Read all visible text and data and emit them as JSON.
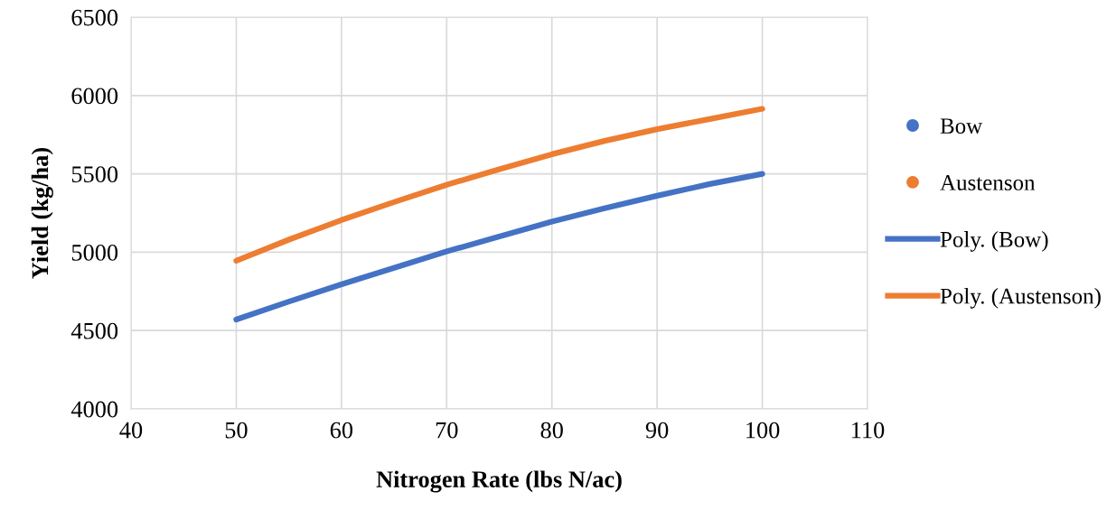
{
  "chart_data": {
    "type": "line",
    "xlabel": "Nitrogen Rate (lbs N/ac)",
    "ylabel": "Yield (kg/ha)",
    "xlim": [
      40,
      110
    ],
    "xticks": [
      40,
      50,
      60,
      70,
      80,
      90,
      100,
      110
    ],
    "ylim": [
      4000,
      6500
    ],
    "yticks": [
      4000,
      4500,
      5000,
      5500,
      6000,
      6500
    ],
    "grid": true,
    "legend": "right",
    "series": [
      {
        "name": "Bow",
        "type": "scatter",
        "marker": "circle",
        "color": "#4472c4"
      },
      {
        "name": "Austenson",
        "type": "scatter",
        "marker": "circle",
        "color": "#ed7d31"
      },
      {
        "name": "Poly. (Bow)",
        "color": "#4472c4",
        "x": [
          50,
          55,
          60,
          65,
          70,
          75,
          80,
          85,
          90,
          95,
          100
        ],
        "values": [
          4570,
          4685,
          4795,
          4900,
          5005,
          5100,
          5195,
          5280,
          5360,
          5435,
          5500
        ]
      },
      {
        "name": "Poly. (Austenson)",
        "color": "#ed7d31",
        "x": [
          50,
          55,
          60,
          65,
          70,
          75,
          80,
          85,
          90,
          95,
          100
        ],
        "values": [
          4945,
          5080,
          5205,
          5320,
          5430,
          5530,
          5625,
          5710,
          5785,
          5850,
          5915
        ]
      }
    ]
  }
}
